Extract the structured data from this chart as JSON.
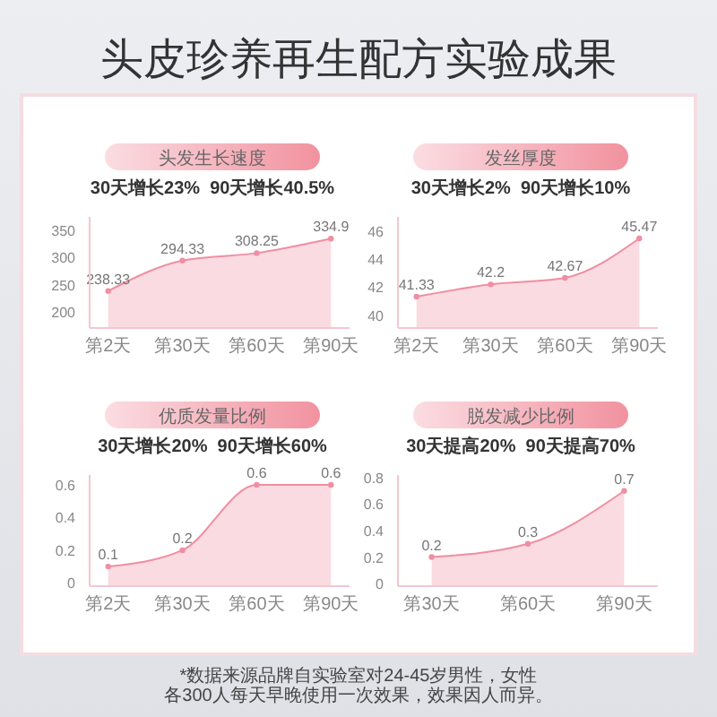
{
  "chart_data": [
    {
      "type": "other",
      "title": "头皮珍养再生配方实验成果",
      "annotations": [
        "*数据来源品牌自实验室对24-45岁男性，女性各300人每天早晚使用一次效果，效果因人而异。"
      ]
    },
    {
      "type": "area",
      "title": "头发生长速度",
      "subtitle": "30天增长23%  90天增长40.5%",
      "categories": [
        "第2天",
        "第30天",
        "第60天",
        "第90天"
      ],
      "series": [
        {
          "color": "#f08ea2",
          "values": [
            238.33,
            294.33,
            308.25,
            334.9
          ]
        }
      ],
      "ylim": [
        170,
        375
      ],
      "yticks": [
        200,
        250,
        300,
        350
      ],
      "data_labels": true,
      "marker": "circle"
    },
    {
      "type": "area",
      "title": "发丝厚度",
      "subtitle": "30天增长2%  90天增长10%",
      "categories": [
        "第2天",
        "第30天",
        "第60天",
        "第90天"
      ],
      "series": [
        {
          "color": "#f08ea2",
          "values": [
            41.33,
            42.2,
            42.67,
            45.47
          ]
        }
      ],
      "ylim": [
        39.1,
        47
      ],
      "yticks": [
        40,
        42,
        44,
        46
      ],
      "data_labels": true,
      "marker": "circle"
    },
    {
      "type": "area",
      "title": "优质发量比例",
      "subtitle": "30天增长20%  90天增长60%",
      "categories": [
        "第2天",
        "第30天",
        "第60天",
        "第90天"
      ],
      "series": [
        {
          "color": "#f08ea2",
          "values": [
            0.1,
            0.2,
            0.6,
            0.6
          ]
        }
      ],
      "ylim": [
        -0.02,
        0.66
      ],
      "yticks": [
        0,
        0.2,
        0.4,
        0.6
      ],
      "data_labels": true,
      "marker": "circle"
    },
    {
      "type": "area",
      "title": "脱发减少比例",
      "subtitle": "30天提高20%  90天提高70%",
      "categories": [
        "第30天",
        "第60天",
        "第90天"
      ],
      "series": [
        {
          "color": "#f08ea2",
          "values": [
            0.2,
            0.3,
            0.7
          ]
        }
      ],
      "ylim": [
        -0.02,
        0.82
      ],
      "yticks": [
        0,
        0.2,
        0.4,
        0.6,
        0.8
      ],
      "data_labels": true,
      "marker": "circle"
    }
  ]
}
